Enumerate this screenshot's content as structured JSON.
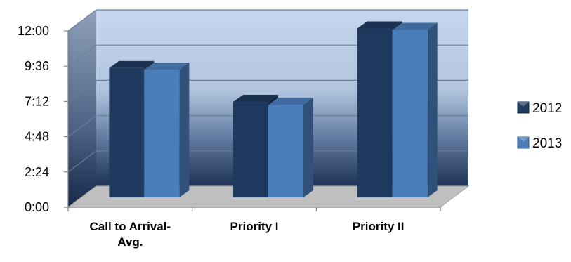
{
  "chart_data": {
    "type": "bar",
    "style": "3d-clustered-column",
    "categories": [
      "Call to Arrival-Avg.",
      "Priority I",
      "Priority II"
    ],
    "category_label_lines": [
      [
        "Call to Arrival-",
        "Avg."
      ],
      [
        "Priority I"
      ],
      [
        "Priority II"
      ]
    ],
    "series": [
      {
        "name": "2012",
        "values": [
          8.8,
          6.5,
          11.5
        ],
        "color": "#1F3A5F"
      },
      {
        "name": "2013",
        "values": [
          8.7,
          6.3,
          11.4
        ],
        "color": "#4A7EBB"
      }
    ],
    "value_unit": "minutes",
    "yticks": [
      "0:00",
      "2:24",
      "4:48",
      "7:12",
      "9:36",
      "12:00"
    ],
    "ylim": [
      0,
      12
    ],
    "grid": true,
    "legend": "right",
    "background": {
      "top": "#C5D6EE",
      "bottom": "#1E3355"
    },
    "floor_color": "#BFBFBF",
    "xlabel": "",
    "ylabel": ""
  }
}
